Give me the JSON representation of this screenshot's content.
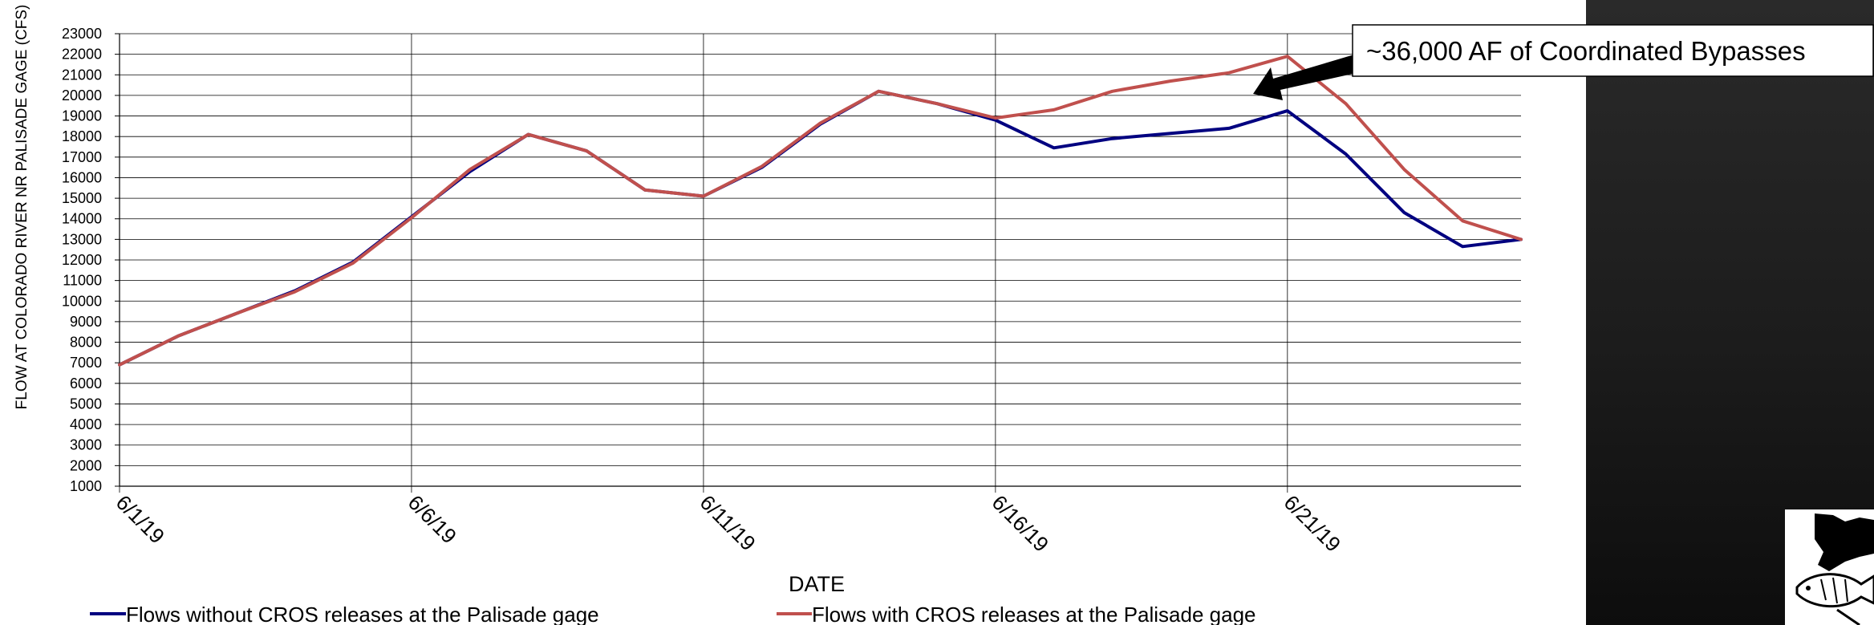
{
  "chart_data": {
    "type": "line",
    "xlabel": "DATE",
    "ylabel": "FLOW AT COLORADO RIVER NR PALISADE GAGE (CFS)",
    "ylim": [
      1000,
      23000
    ],
    "yticks": [
      1000,
      2000,
      3000,
      4000,
      5000,
      6000,
      7000,
      8000,
      9000,
      10000,
      11000,
      12000,
      13000,
      14000,
      15000,
      16000,
      17000,
      18000,
      19000,
      20000,
      21000,
      22000,
      23000
    ],
    "x_tick_labels": [
      "6/1/19",
      "6/6/19",
      "6/11/19",
      "6/16/19",
      "6/21/19"
    ],
    "x": [
      "6/1/19",
      "6/2/19",
      "6/3/19",
      "6/4/19",
      "6/5/19",
      "6/6/19",
      "6/7/19",
      "6/8/19",
      "6/9/19",
      "6/10/19",
      "6/11/19",
      "6/12/19",
      "6/13/19",
      "6/14/19",
      "6/15/19",
      "6/16/19",
      "6/17/19",
      "6/18/19",
      "6/19/19",
      "6/20/19",
      "6/21/19",
      "6/22/19",
      "6/23/19",
      "6/24/19",
      "6/25/19"
    ],
    "series": [
      {
        "name": "Flows without CROS releases at the Palisade gage",
        "color": "#000080",
        "values": [
          6900,
          8300,
          9400,
          10500,
          11900,
          14100,
          16300,
          18100,
          17300,
          15400,
          15100,
          16500,
          18600,
          20200,
          19600,
          18800,
          17450,
          17900,
          18150,
          18400,
          19250,
          17150,
          14300,
          12650,
          13000
        ]
      },
      {
        "name": "Flows with CROS releases at the Palisade gage",
        "color": "#c0504d",
        "values": [
          6900,
          8300,
          9400,
          10450,
          11850,
          14050,
          16400,
          18100,
          17300,
          15400,
          15100,
          16550,
          18650,
          20200,
          19600,
          18900,
          19300,
          20200,
          20700,
          21100,
          21900,
          19600,
          16400,
          13900,
          13000
        ]
      }
    ],
    "grid": true,
    "legend_position": "bottom",
    "annotation": "~36,000 AF of Coordinated Bypasses"
  },
  "logo": {
    "name": "fish-logo-icon"
  }
}
